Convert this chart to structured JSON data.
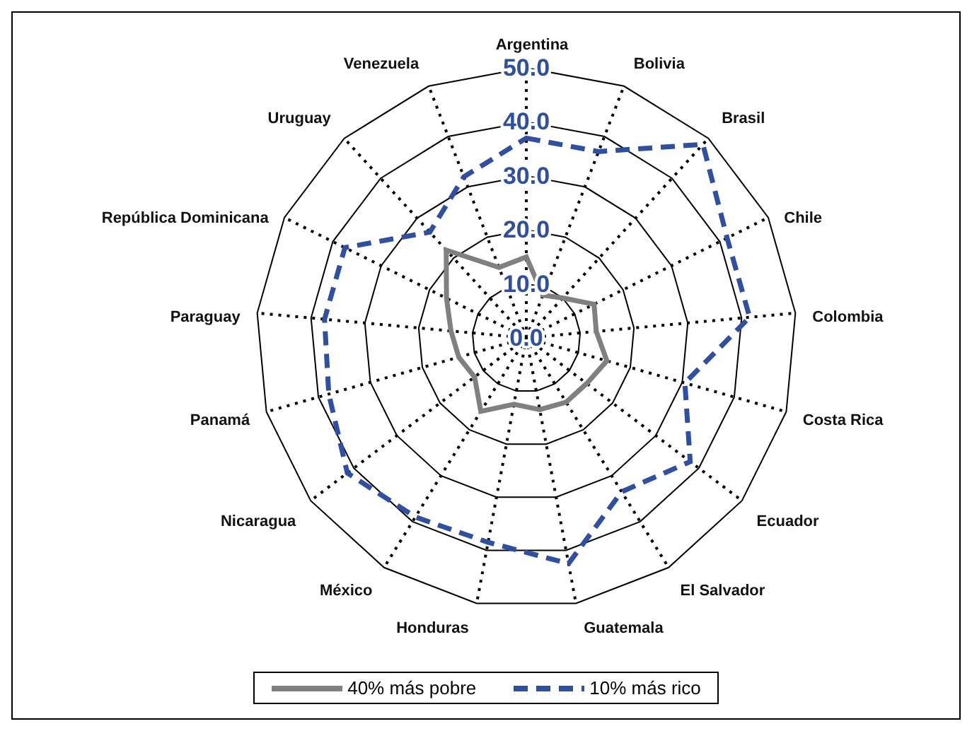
{
  "chart_data": {
    "type": "radar",
    "categories": [
      "Argentina",
      "Bolivia",
      "Brasil",
      "Chile",
      "Colombia",
      "Costa Rica",
      "Ecuador",
      "El Salvador",
      "Guatemala",
      "Honduras",
      "México",
      "Nicaragua",
      "Panamá",
      "Paraguay",
      "República Dominicana",
      "Uruguay",
      "Venezuela"
    ],
    "series": [
      {
        "name": "40% más pobre",
        "color": "#808080",
        "line_style": "solid",
        "values": [
          15,
          8.5,
          10,
          14,
          13,
          15.5,
          14,
          14,
          13.5,
          12.5,
          16,
          12,
          13,
          14,
          16.5,
          22,
          14
        ]
      },
      {
        "name": "10% más rico",
        "color": "#2e4fa3",
        "line_style": "dashed",
        "values": [
          37,
          37,
          48.5,
          41.5,
          41.5,
          30.5,
          38,
          33.5,
          42.5,
          38.5,
          39,
          41.5,
          38,
          37.5,
          37.5,
          26.5,
          32
        ]
      }
    ],
    "ylim": [
      0,
      50
    ],
    "yticks": [
      {
        "value": 0,
        "label": "0.0"
      },
      {
        "value": 10,
        "label": "10.0"
      },
      {
        "value": 20,
        "label": "20.0"
      },
      {
        "value": 30,
        "label": "30.0"
      },
      {
        "value": 40,
        "label": "40.0"
      },
      {
        "value": 50,
        "label": "50.0"
      }
    ],
    "grid": true,
    "legend": "bottom",
    "marker": "none"
  }
}
